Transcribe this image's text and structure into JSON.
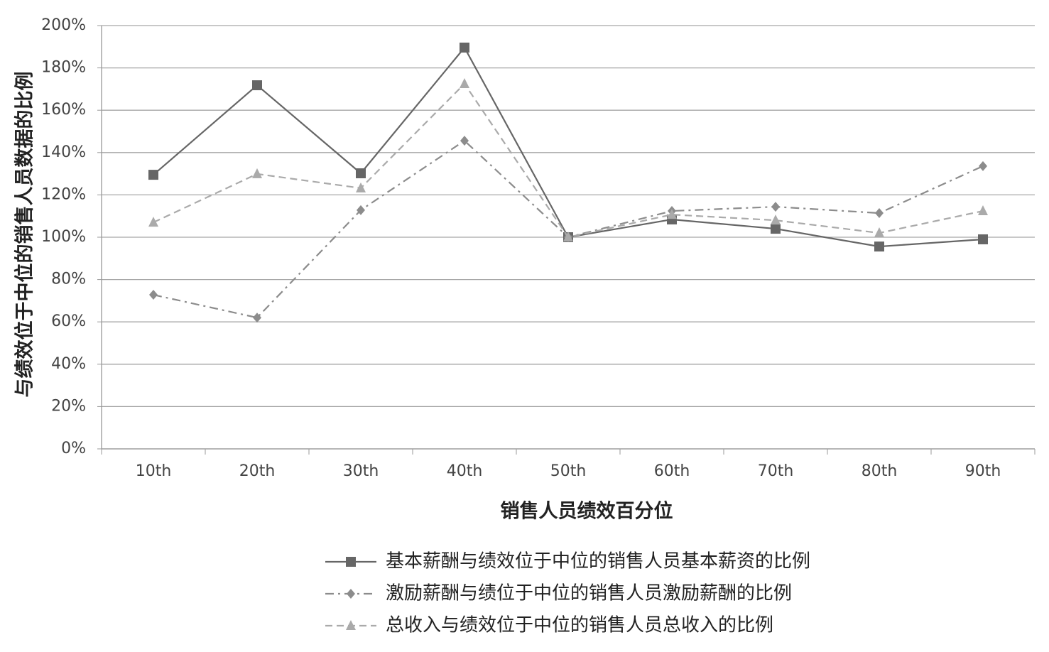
{
  "chart_data": {
    "type": "line",
    "x_label": "销售人员绩效百分位",
    "y_label": "与绩效位于中位的销售人员数据的比例",
    "categories": [
      "10th",
      "20th",
      "30th",
      "40th",
      "50th",
      "60th",
      "70th",
      "80th",
      "90th"
    ],
    "series": [
      {
        "name": "基本薪酬与绩效位于中位的销售人员基本薪资的比例",
        "color": "#666666",
        "marker": "square",
        "dash": "solid",
        "values": [
          129.5,
          171.8,
          130.2,
          189.6,
          100,
          108.4,
          104,
          95.6,
          99
        ]
      },
      {
        "name": "激励薪酬与绩位于中位的销售人员激励薪酬的比例",
        "color": "#8c8c8c",
        "marker": "diamond",
        "dash": "dashdot",
        "values": [
          72.8,
          62,
          112.8,
          145.6,
          100,
          112.4,
          114.4,
          111.4,
          133.6
        ]
      },
      {
        "name": "总收入与绩效位于中位的销售人员总收入的比例",
        "color": "#aaaaaa",
        "marker": "triangle",
        "dash": "dashed",
        "values": [
          107,
          129.9,
          123.2,
          172.5,
          100,
          110.7,
          108,
          102,
          112.4
        ]
      }
    ],
    "ylim": [
      0,
      200
    ],
    "yticks": [
      {
        "value": 0,
        "label": "0%"
      },
      {
        "value": 20,
        "label": "20%"
      },
      {
        "value": 40,
        "label": "40%"
      },
      {
        "value": 60,
        "label": "60%"
      },
      {
        "value": 80,
        "label": "80%"
      },
      {
        "value": 100,
        "label": "100%"
      },
      {
        "value": 120,
        "label": "120%"
      },
      {
        "value": 140,
        "label": "140%"
      },
      {
        "value": 160,
        "label": "160%"
      },
      {
        "value": 180,
        "label": "180%"
      },
      {
        "value": 200,
        "label": "200%"
      }
    ],
    "grid": true
  }
}
